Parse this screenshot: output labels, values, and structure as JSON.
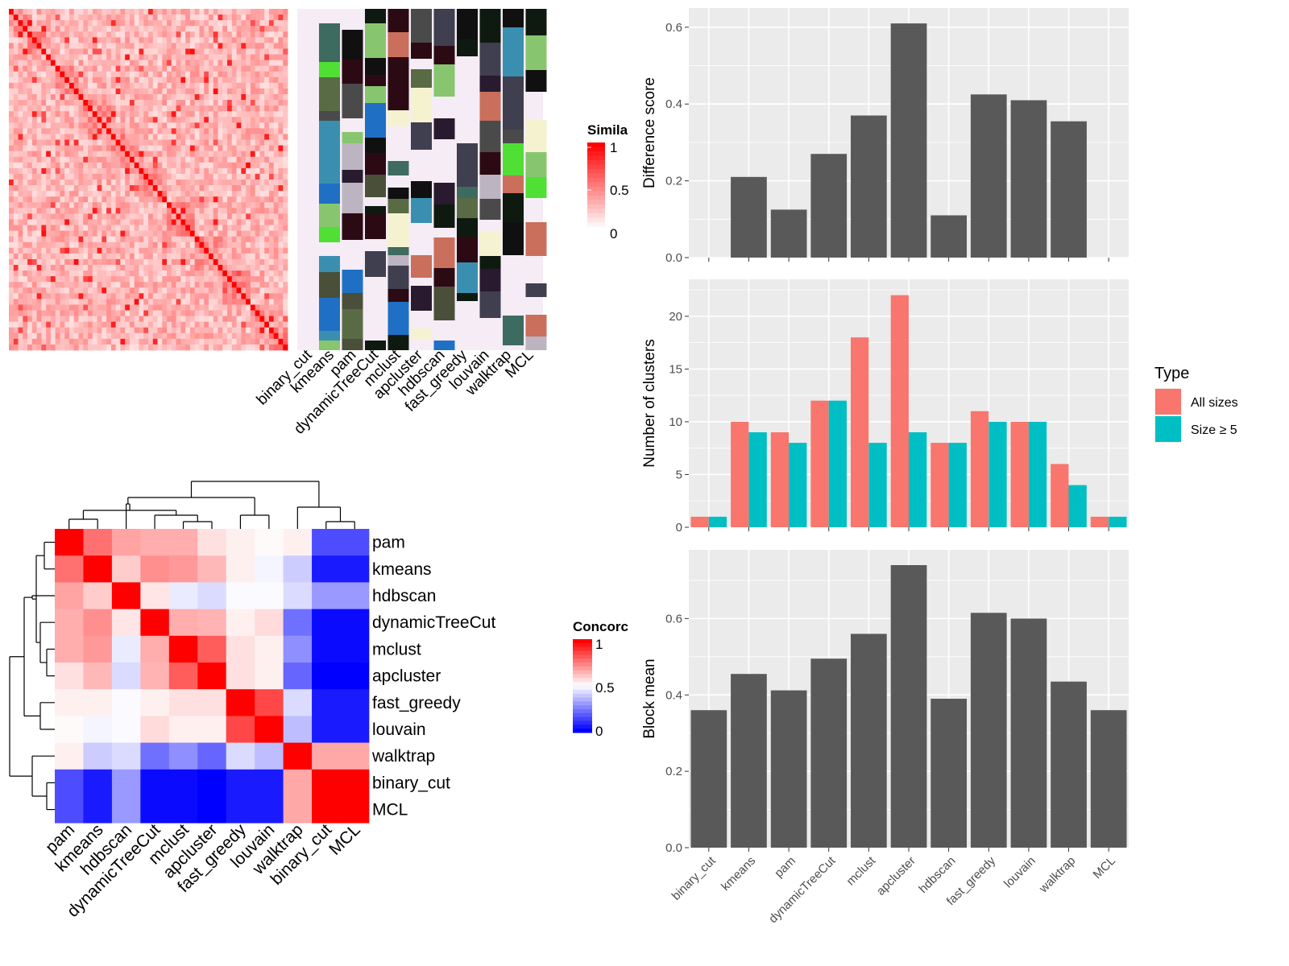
{
  "similarity_heatmap": {
    "legend_title": "Simila",
    "legend_ticks": [
      "1",
      "0.5",
      "0"
    ],
    "colors": {
      "low": "#ffffff",
      "high": "#ff0000"
    },
    "column_labels": [
      "binary_cut",
      "kmeans",
      "pam",
      "dynamicTreeCut",
      "mclust",
      "apcluster",
      "hdbscan",
      "fast_greedy",
      "louvain",
      "walktrap",
      "MCL"
    ],
    "background_color": "#f5ecf5"
  },
  "concordance_heatmap": {
    "legend_title": "Concorc",
    "legend_ticks": [
      "1",
      "0.5",
      "0"
    ],
    "colors": {
      "low": "#0000ff",
      "mid": "#ffffff",
      "high": "#ff0000"
    },
    "labels": [
      "pam",
      "kmeans",
      "hdbscan",
      "dynamicTreeCut",
      "mclust",
      "apcluster",
      "fast_greedy",
      "louvain",
      "walktrap",
      "binary_cut",
      "MCL"
    ],
    "matrix": [
      [
        1.0,
        0.78,
        0.68,
        0.66,
        0.66,
        0.56,
        0.53,
        0.51,
        0.53,
        0.15,
        0.15
      ],
      [
        0.78,
        1.0,
        0.6,
        0.72,
        0.7,
        0.64,
        0.53,
        0.48,
        0.4,
        0.05,
        0.05
      ],
      [
        0.68,
        0.6,
        1.0,
        0.55,
        0.46,
        0.43,
        0.49,
        0.49,
        0.43,
        0.3,
        0.3
      ],
      [
        0.66,
        0.72,
        0.55,
        1.0,
        0.66,
        0.65,
        0.53,
        0.57,
        0.22,
        0.02,
        0.02
      ],
      [
        0.66,
        0.7,
        0.46,
        0.66,
        1.0,
        0.82,
        0.56,
        0.53,
        0.28,
        0.02,
        0.02
      ],
      [
        0.56,
        0.64,
        0.43,
        0.65,
        0.82,
        1.0,
        0.56,
        0.53,
        0.2,
        -0.05,
        -0.05
      ],
      [
        0.53,
        0.53,
        0.49,
        0.53,
        0.56,
        0.56,
        1.0,
        0.86,
        0.43,
        0.05,
        0.05
      ],
      [
        0.51,
        0.48,
        0.49,
        0.57,
        0.53,
        0.53,
        0.86,
        1.0,
        0.37,
        0.05,
        0.05
      ],
      [
        0.53,
        0.4,
        0.43,
        0.22,
        0.28,
        0.2,
        0.43,
        0.37,
        1.0,
        0.67,
        0.67
      ],
      [
        0.15,
        0.05,
        0.3,
        0.02,
        0.02,
        -0.05,
        0.05,
        0.05,
        0.67,
        1.0,
        1.0
      ],
      [
        0.15,
        0.05,
        0.3,
        0.02,
        0.02,
        -0.05,
        0.05,
        0.05,
        0.67,
        1.0,
        1.0
      ]
    ]
  },
  "chart_data": [
    {
      "type": "bar",
      "ylabel": "Difference score",
      "categories": [
        "binary_cut",
        "kmeans",
        "pam",
        "dynamicTreeCut",
        "mclust",
        "apcluster",
        "hdbscan",
        "fast_greedy",
        "louvain",
        "walktrap",
        "MCL"
      ],
      "values": [
        0,
        0.21,
        0.125,
        0.27,
        0.37,
        0.61,
        0.11,
        0.425,
        0.41,
        0.355,
        0
      ],
      "ylim": [
        0,
        0.65
      ],
      "yticks": [
        "0.0",
        "0.2",
        "0.4",
        "0.6"
      ],
      "grid": true,
      "bar_color": "#595959",
      "panel_color": "#ebebeb"
    },
    {
      "type": "bar",
      "ylabel": "Number of clusters",
      "categories": [
        "binary_cut",
        "kmeans",
        "pam",
        "dynamicTreeCut",
        "mclust",
        "apcluster",
        "hdbscan",
        "fast_greedy",
        "louvain",
        "walktrap",
        "MCL"
      ],
      "series": [
        {
          "name": "All sizes",
          "color": "#f8766d",
          "values": [
            1,
            10,
            9,
            12,
            18,
            22,
            8,
            11,
            10,
            6,
            1
          ]
        },
        {
          "name": "Size ≥ 5",
          "color": "#00bfc4",
          "values": [
            1,
            9,
            8,
            12,
            8,
            9,
            8,
            10,
            10,
            4,
            1
          ]
        }
      ],
      "ylim": [
        0,
        23.5
      ],
      "yticks": [
        "0",
        "5",
        "10",
        "15",
        "20"
      ],
      "legend_title": "Type",
      "legend_position": "right",
      "grid": true,
      "panel_color": "#ebebeb"
    },
    {
      "type": "bar",
      "ylabel": "Block mean",
      "categories": [
        "binary_cut",
        "kmeans",
        "pam",
        "dynamicTreeCut",
        "mclust",
        "apcluster",
        "hdbscan",
        "fast_greedy",
        "louvain",
        "walktrap",
        "MCL"
      ],
      "values": [
        0.36,
        0.455,
        0.412,
        0.495,
        0.56,
        0.74,
        0.39,
        0.615,
        0.6,
        0.435,
        0.36
      ],
      "ylim": [
        0,
        0.78
      ],
      "yticks": [
        "0.0",
        "0.2",
        "0.4",
        "0.6"
      ],
      "grid": true,
      "bar_color": "#595959",
      "panel_color": "#ebebeb"
    }
  ]
}
